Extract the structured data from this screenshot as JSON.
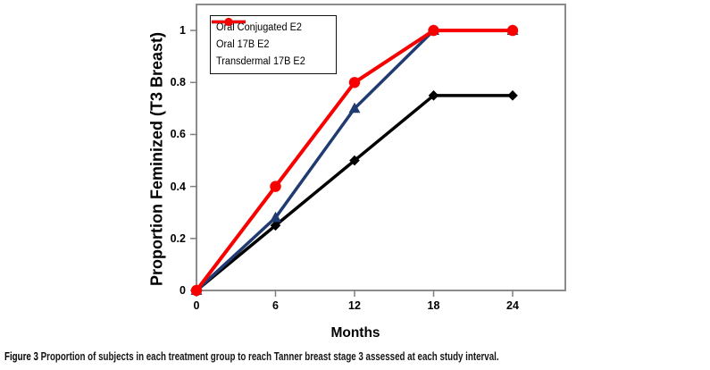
{
  "figure": {
    "caption_prefix": "Figure 3",
    "caption_text": " Proportion of subjects in each treatment group to reach Tanner breast stage 3 assessed at each study interval."
  },
  "chart_data": {
    "type": "line",
    "x": [
      0,
      6,
      12,
      18,
      24
    ],
    "series": [
      {
        "name": "Oral Conjugated E2",
        "marker": "diamond",
        "color": "#000000",
        "values": [
          0,
          0.25,
          0.5,
          0.75,
          0.75
        ]
      },
      {
        "name": "Oral 17B E2",
        "marker": "triangle",
        "color": "#203A72",
        "values": [
          0,
          0.28,
          0.7,
          1,
          1
        ]
      },
      {
        "name": "Transdermal 17B E2",
        "marker": "circle",
        "color": "#F80000",
        "values": [
          0,
          0.4,
          0.8,
          1,
          1
        ]
      }
    ],
    "xlabel": "Months",
    "ylabel": "Proportion Feminized (T3 Breast)",
    "xlim": [
      0,
      28
    ],
    "ylim": [
      0,
      1.1
    ],
    "xticks": {
      "values": [
        0,
        6,
        12,
        18,
        24
      ],
      "labels": [
        "0",
        "6",
        "12",
        "18",
        "24"
      ]
    },
    "yticks": {
      "values": [
        0,
        0.2,
        0.4,
        0.6,
        0.8,
        1
      ],
      "labels": [
        "0",
        "0.2",
        "0.4",
        "0.6",
        "0.8",
        "1"
      ]
    },
    "legend_position": "top-left",
    "grid": false,
    "frame_color": "#7f7f7f"
  }
}
